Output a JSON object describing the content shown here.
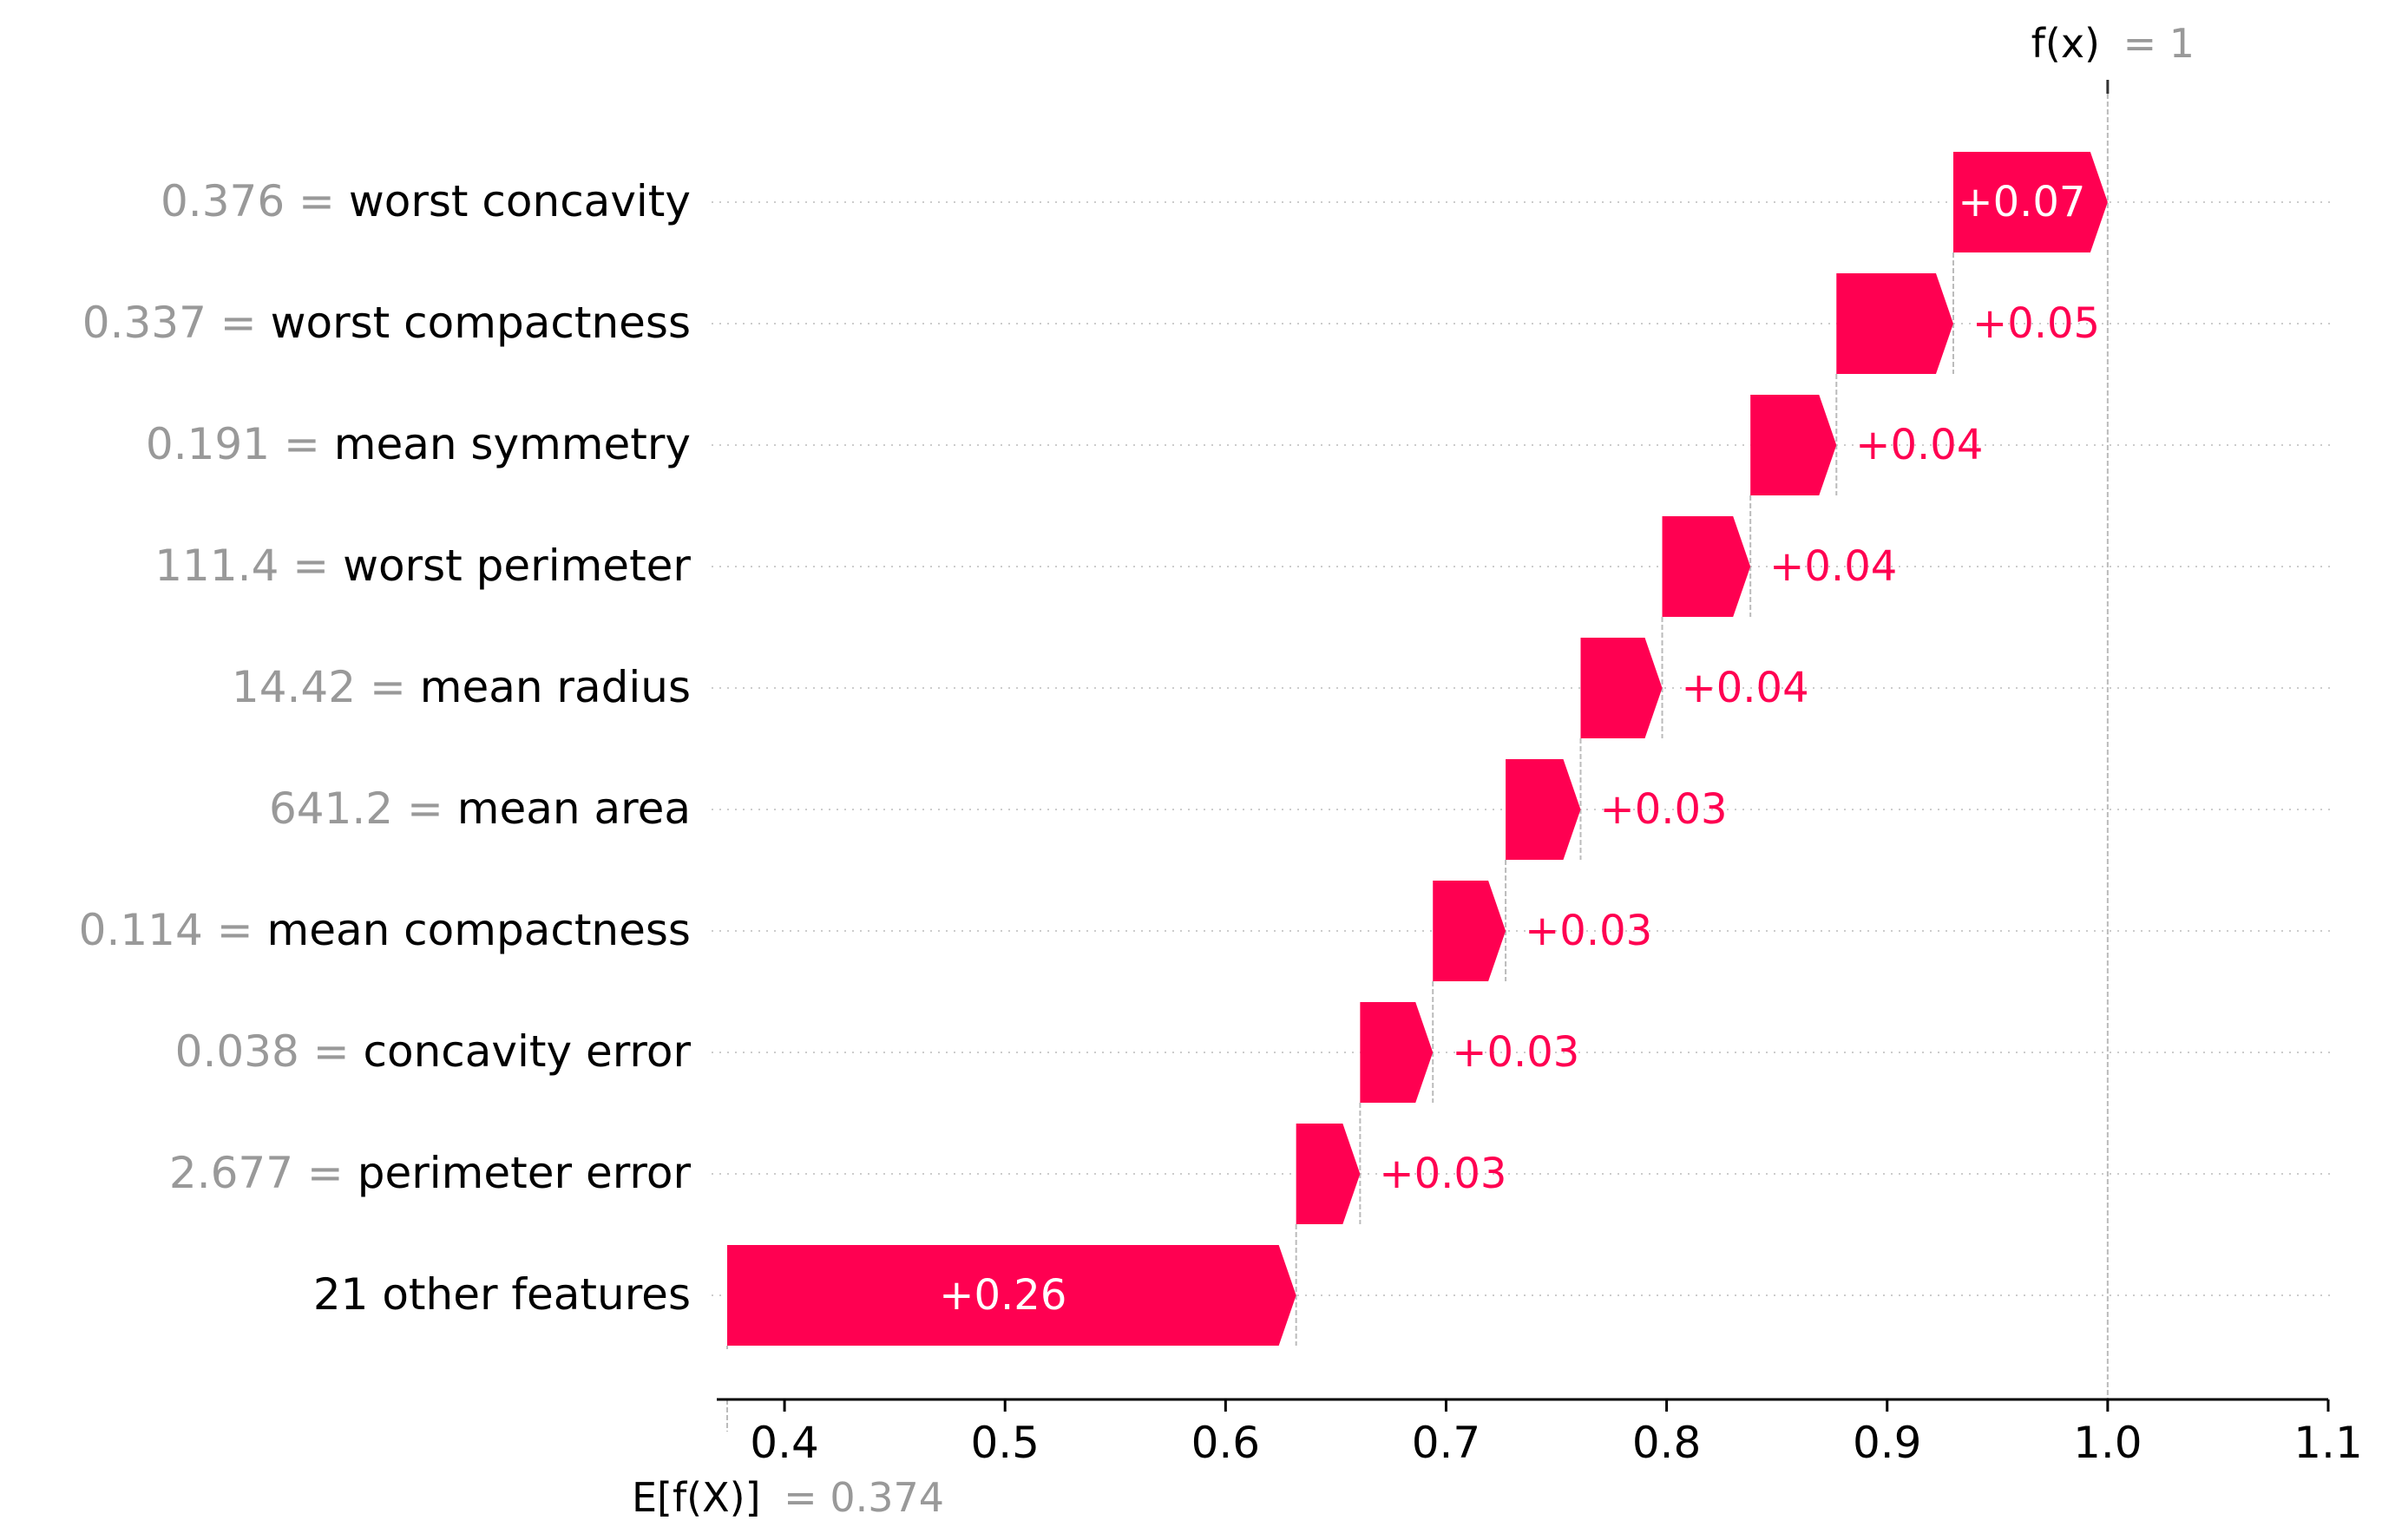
{
  "chart_data": {
    "type": "waterfall",
    "colors": {
      "positive": "#ff0051",
      "gray": "#999999",
      "grid": "#cccccc"
    },
    "base": {
      "label": "E[f(X)]",
      "value_text": "= 0.374",
      "value": 0.374
    },
    "output": {
      "label": "f(x)",
      "value_text": "= 1",
      "value": 1.0
    },
    "features": [
      {
        "value": "0.376",
        "name": "worst concavity",
        "contribution": 0.07,
        "label": "+0.07"
      },
      {
        "value": "0.337",
        "name": "worst compactness",
        "contribution": 0.05,
        "label": "+0.05"
      },
      {
        "value": "0.191",
        "name": "mean symmetry",
        "contribution": 0.04,
        "label": "+0.04"
      },
      {
        "value": "111.4",
        "name": "worst perimeter",
        "contribution": 0.04,
        "label": "+0.04"
      },
      {
        "value": "14.42",
        "name": "mean radius",
        "contribution": 0.04,
        "label": "+0.04"
      },
      {
        "value": "641.2",
        "name": "mean area",
        "contribution": 0.03,
        "label": "+0.03"
      },
      {
        "value": "0.114",
        "name": "mean compactness",
        "contribution": 0.03,
        "label": "+0.03"
      },
      {
        "value": "0.038",
        "name": "concavity error",
        "contribution": 0.03,
        "label": "+0.03"
      },
      {
        "value": "2.677",
        "name": "perimeter error",
        "contribution": 0.03,
        "label": "+0.03"
      },
      {
        "value": "",
        "name": "21 other features",
        "contribution": 0.26,
        "label": "+0.26"
      }
    ],
    "segments": [
      {
        "start": 0.93,
        "end": 1.0
      },
      {
        "start": 0.877,
        "end": 0.93
      },
      {
        "start": 0.838,
        "end": 0.877
      },
      {
        "start": 0.798,
        "end": 0.838
      },
      {
        "start": 0.761,
        "end": 0.798
      },
      {
        "start": 0.727,
        "end": 0.761
      },
      {
        "start": 0.694,
        "end": 0.727
      },
      {
        "start": 0.661,
        "end": 0.694
      },
      {
        "start": 0.632,
        "end": 0.661
      },
      {
        "start": 0.374,
        "end": 0.632
      }
    ],
    "x_ticks": [
      "0.4",
      "0.5",
      "0.6",
      "0.7",
      "0.8",
      "0.9",
      "1.0",
      "1.1"
    ],
    "x_tick_values": [
      0.4,
      0.5,
      0.6,
      0.7,
      0.8,
      0.9,
      1.0,
      1.1
    ],
    "xlim": [
      0.374,
      1.1
    ],
    "grid": "horizontal dotted"
  }
}
